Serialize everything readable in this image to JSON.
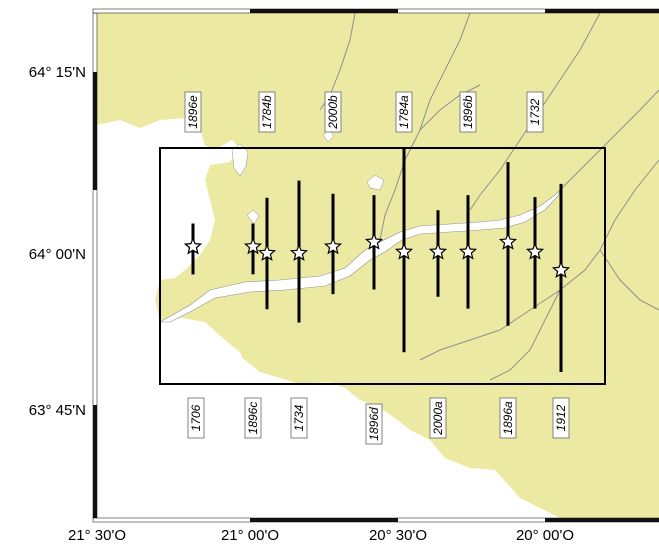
{
  "colors": {
    "land": "#ece9a2",
    "sea": "#ffffff",
    "river": "#8f8f8f",
    "frame_dark": "#111111",
    "frame_light": "#ffffff",
    "bar": "#000000",
    "star_fill": "#ffffff"
  },
  "axes": {
    "lat_labels": [
      "64° 15'N",
      "64° 00'N",
      "63° 45'N"
    ],
    "lon_labels": [
      "21° 30'O",
      "21° 00'O",
      "20° 30'O",
      "20° 00'O"
    ]
  },
  "events": [
    {
      "id": "1896e",
      "y_top": 64.025,
      "y_bottom": 63.948
    },
    {
      "id": "1706",
      "y_top": 64.025,
      "y_bottom": 63.948
    },
    {
      "id": "1896c",
      "y_top": 64.025,
      "y_bottom": 63.948
    },
    {
      "id": "1784b",
      "y_top": 64.064,
      "y_bottom": 63.895
    },
    {
      "id": "1734",
      "y_top": 64.09,
      "y_bottom": 63.875
    },
    {
      "id": "2000b",
      "y_top": 64.07,
      "y_bottom": 63.918
    },
    {
      "id": "1896d",
      "y_top": 64.068,
      "y_bottom": 63.925
    },
    {
      "id": "1784a",
      "y_top": 64.14,
      "y_bottom": 63.83
    },
    {
      "id": "2000a",
      "y_top": 64.045,
      "y_bottom": 63.914
    },
    {
      "id": "1896b",
      "y_top": 64.068,
      "y_bottom": 63.896
    },
    {
      "id": "1896a",
      "y_top": 64.118,
      "y_bottom": 63.87
    },
    {
      "id": "1732",
      "y_top": 64.065,
      "y_bottom": 63.896
    },
    {
      "id": "1912",
      "y_top": 64.085,
      "y_bottom": 63.8
    }
  ]
}
